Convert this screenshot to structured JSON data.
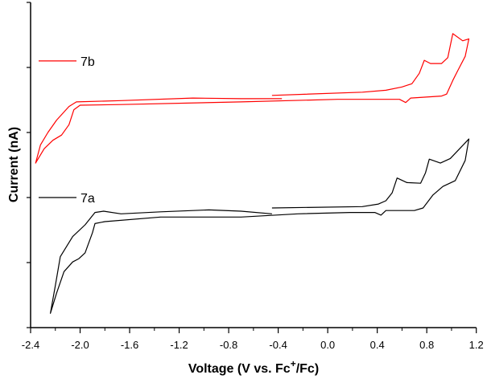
{
  "chart_data": {
    "type": "line",
    "title": "",
    "xlabel": "Voltage (V vs. Fc+/Fc)",
    "xlabel_parts": {
      "main": "Voltage (V vs. Fc",
      "sup": "+",
      "tail": "/Fc)"
    },
    "ylabel": "Current (nA)",
    "xlim": [
      -2.4,
      1.2
    ],
    "ylim": [
      0,
      5
    ],
    "x_ticks": [
      -2.4,
      -2.0,
      -1.6,
      -1.2,
      -0.8,
      -0.4,
      0.0,
      0.4,
      0.8,
      1.2
    ],
    "x_tick_labels": [
      "-2.4",
      "-2.0",
      "-1.6",
      "-1.2",
      "-0.8",
      "-0.4",
      "0.0",
      "0.4",
      "0.8",
      "1.2"
    ],
    "y_ticks_unlabeled": [
      0,
      1,
      2,
      3,
      4,
      5
    ],
    "grid": false,
    "legend_placement": "inline-left",
    "series": [
      {
        "name": "7b",
        "color": "#ff0000",
        "points": [
          [
            -0.45,
            3.57
          ],
          [
            0.28,
            3.62
          ],
          [
            0.47,
            3.65
          ],
          [
            0.6,
            3.7
          ],
          [
            0.68,
            3.75
          ],
          [
            0.74,
            3.91
          ],
          [
            0.78,
            4.11
          ],
          [
            0.83,
            4.06
          ],
          [
            0.92,
            4.06
          ],
          [
            0.97,
            4.15
          ],
          [
            1.01,
            4.52
          ],
          [
            1.09,
            4.41
          ],
          [
            1.14,
            4.44
          ],
          [
            1.11,
            4.17
          ],
          [
            1.05,
            3.95
          ],
          [
            1.01,
            3.8
          ],
          [
            0.96,
            3.59
          ],
          [
            0.92,
            3.56
          ],
          [
            0.67,
            3.53
          ],
          [
            0.63,
            3.46
          ],
          [
            0.58,
            3.51
          ],
          [
            0.08,
            3.51
          ],
          [
            -0.7,
            3.47
          ],
          [
            -1.67,
            3.43
          ],
          [
            -2.0,
            3.42
          ],
          [
            -2.05,
            3.35
          ],
          [
            -2.09,
            3.12
          ],
          [
            -2.15,
            2.96
          ],
          [
            -2.22,
            2.88
          ],
          [
            -2.29,
            2.75
          ],
          [
            -2.36,
            2.53
          ],
          [
            -2.32,
            2.81
          ],
          [
            -2.26,
            3.0
          ],
          [
            -2.19,
            3.19
          ],
          [
            -2.09,
            3.4
          ],
          [
            -2.03,
            3.47
          ],
          [
            -1.67,
            3.49
          ],
          [
            -1.09,
            3.53
          ],
          [
            -0.7,
            3.52
          ],
          [
            -0.37,
            3.52
          ]
        ],
        "legend_y": 4.1
      },
      {
        "name": "7a",
        "color": "#000000",
        "points": [
          [
            -0.45,
            1.84
          ],
          [
            0.28,
            1.86
          ],
          [
            0.41,
            1.9
          ],
          [
            0.47,
            1.95
          ],
          [
            0.52,
            2.07
          ],
          [
            0.56,
            2.3
          ],
          [
            0.64,
            2.23
          ],
          [
            0.75,
            2.22
          ],
          [
            0.79,
            2.38
          ],
          [
            0.82,
            2.59
          ],
          [
            0.91,
            2.53
          ],
          [
            0.99,
            2.6
          ],
          [
            1.14,
            2.9
          ],
          [
            1.11,
            2.57
          ],
          [
            1.03,
            2.26
          ],
          [
            0.93,
            2.17
          ],
          [
            0.85,
            2.04
          ],
          [
            0.77,
            1.84
          ],
          [
            0.7,
            1.8
          ],
          [
            0.47,
            1.8
          ],
          [
            0.43,
            1.73
          ],
          [
            0.38,
            1.77
          ],
          [
            0.18,
            1.77
          ],
          [
            -0.24,
            1.75
          ],
          [
            -0.7,
            1.7
          ],
          [
            -1.35,
            1.7
          ],
          [
            -1.8,
            1.63
          ],
          [
            -1.88,
            1.6
          ],
          [
            -1.9,
            1.46
          ],
          [
            -1.96,
            1.15
          ],
          [
            -2.01,
            1.06
          ],
          [
            -2.06,
            1.01
          ],
          [
            -2.13,
            0.86
          ],
          [
            -2.19,
            0.53
          ],
          [
            -2.24,
            0.22
          ],
          [
            -2.2,
            0.65
          ],
          [
            -2.16,
            1.09
          ],
          [
            -2.06,
            1.4
          ],
          [
            -1.96,
            1.58
          ],
          [
            -1.88,
            1.77
          ],
          [
            -1.81,
            1.79
          ],
          [
            -1.67,
            1.75
          ],
          [
            -1.35,
            1.78
          ],
          [
            -0.96,
            1.81
          ],
          [
            -0.7,
            1.79
          ],
          [
            -0.45,
            1.75
          ]
        ],
        "legend_y": 2.0
      }
    ]
  }
}
